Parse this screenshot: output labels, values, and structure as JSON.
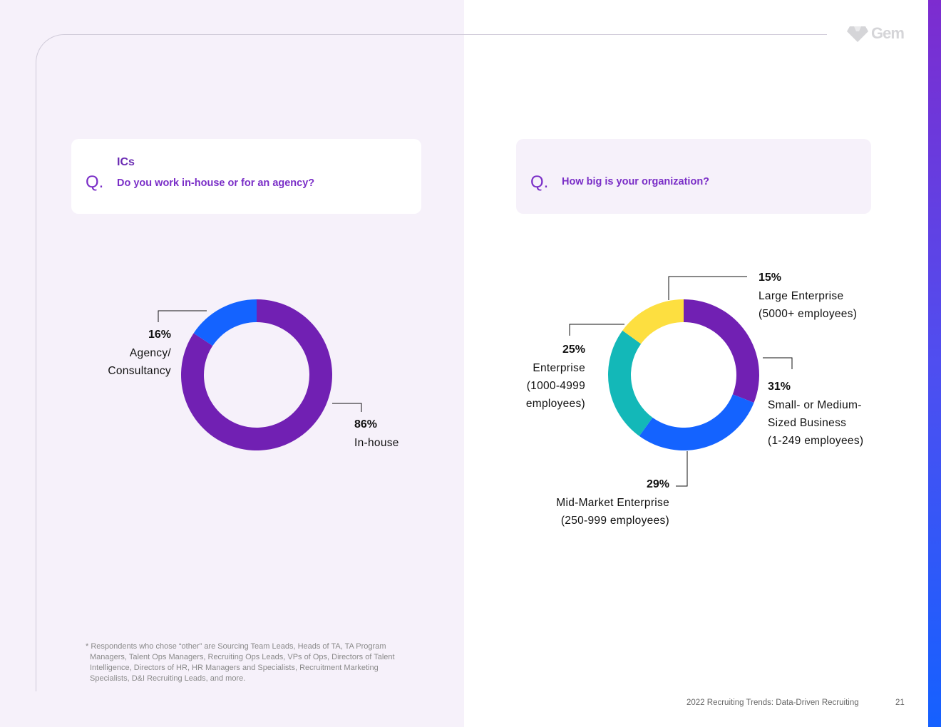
{
  "brand": {
    "logo_text": "Gem",
    "accent": "#7a2ec7",
    "purple": "#7120b3",
    "blue": "#1463ff",
    "teal": "#13b8b8",
    "yellow": "#fddf40"
  },
  "left_question": {
    "mark": "Q.",
    "group": "ICs",
    "question": "Do you work in-house or for an agency?"
  },
  "right_question": {
    "mark": "Q.",
    "question": "How big is your organization?"
  },
  "chart_data": [
    {
      "type": "pie",
      "title": "Do you work in-house or for an agency?",
      "categories": [
        "In-house",
        "Agency/ Consultancy"
      ],
      "values": [
        86,
        16
      ],
      "labels": [
        {
          "pct": "86%",
          "lines": [
            "In-house"
          ]
        },
        {
          "pct": "16%",
          "lines": [
            "Agency/",
            "Consultancy"
          ]
        }
      ],
      "colors": [
        "#7120b3",
        "#1463ff"
      ]
    },
    {
      "type": "pie",
      "title": "How big is your organization?",
      "categories": [
        "Small- or Medium-Sized Business (1-249 employees)",
        "Mid-Market Enterprise (250-999 employees)",
        "Enterprise (1000-4999 employees)",
        "Large Enterprise (5000+ employees)"
      ],
      "values": [
        31,
        29,
        25,
        15
      ],
      "labels": [
        {
          "pct": "31%",
          "lines": [
            "Small- or Medium-",
            "Sized Business",
            "(1-249 employees)"
          ]
        },
        {
          "pct": "29%",
          "lines": [
            "Mid-Market Enterprise",
            "(250-999 employees)"
          ]
        },
        {
          "pct": "25%",
          "lines": [
            "Enterprise",
            "(1000-4999",
            "employees)"
          ]
        },
        {
          "pct": "15%",
          "lines": [
            "Large Enterprise",
            "(5000+ employees)"
          ]
        }
      ],
      "colors": [
        "#7120b3",
        "#1463ff",
        "#13b8b8",
        "#fddf40"
      ]
    }
  ],
  "footnote": [
    "* Respondents who chose “other” are Sourcing Team Leads, Heads of TA, TA Program",
    "Managers, Talent Ops Managers, Recruiting Ops Leads, VPs of Ops, Directors of Talent",
    "Intelligence, Directors of HR, HR Managers and Specialists, Recruitment Marketing",
    "Specialists, D&I Recruiting Leads, and more."
  ],
  "footer": {
    "title": "2022 Recruiting Trends: Data-Driven Recruiting",
    "page": "21"
  }
}
